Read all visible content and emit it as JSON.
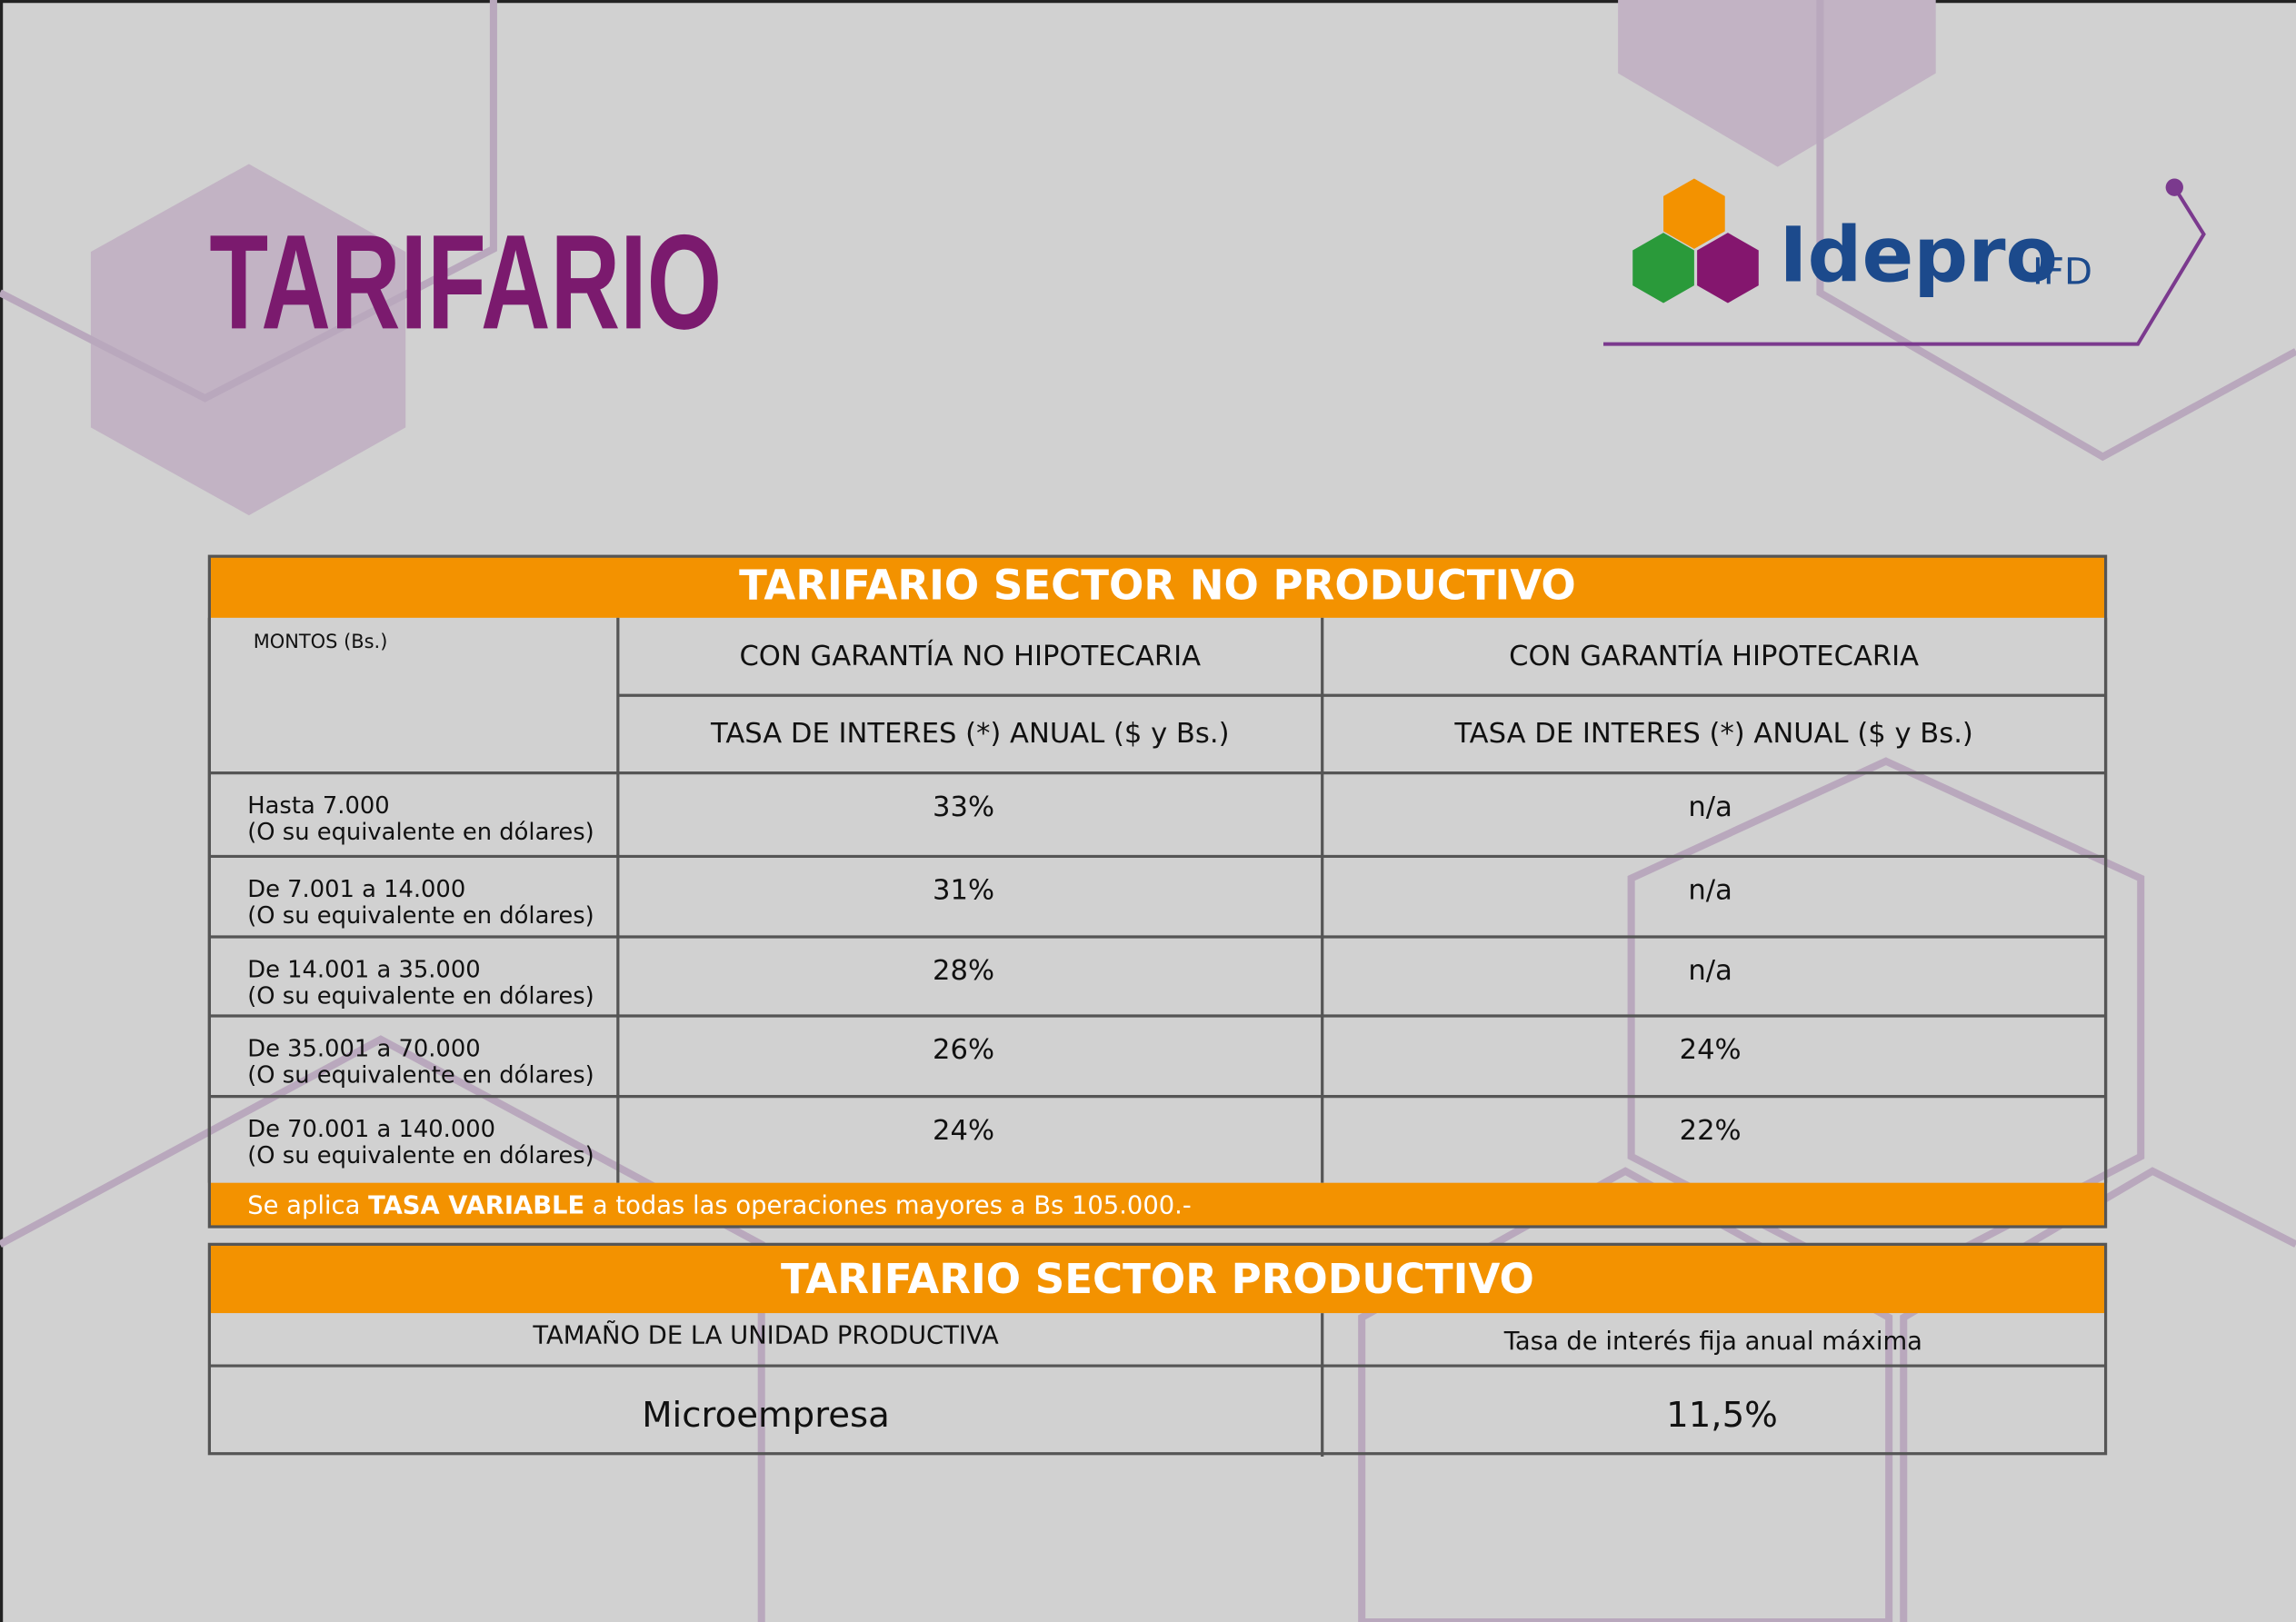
{
  "header": {
    "title": "TARIFARIO",
    "logo": {
      "name": "Idepro",
      "suffix": "IFD"
    }
  },
  "table_no_productivo": {
    "title": "TARIFARIO SECTOR NO PRODUCTIVO",
    "corner": "MONTOS (Bs.)",
    "columns": [
      "CON GARANTÍA NO HIPOTECARIA",
      "CON GARANTÍA HIPOTECARIA"
    ],
    "subheaders": [
      "TASA DE INTERES (*) ANUAL ($ y Bs.)",
      "TASA DE INTERES (*) ANUAL ($ y Bs.)"
    ],
    "rows": [
      {
        "amount": "Hasta 7.000",
        "note": "(O su equivalente en dólares)",
        "values": [
          "33%",
          "n/a"
        ]
      },
      {
        "amount": "De 7.001 a 14.000",
        "note": "(O su equivalente en dólares)",
        "values": [
          "31%",
          "n/a"
        ]
      },
      {
        "amount": "De 14.001 a 35.000",
        "note": "(O su equivalente en dólares)",
        "values": [
          "28%",
          "n/a"
        ]
      },
      {
        "amount": "De 35.001 a 70.000",
        "note": "(O su equivalente en dólares)",
        "values": [
          "26%",
          "24%"
        ]
      },
      {
        "amount": "De 70.001 a 140.000",
        "note": "(O su equivalente en dólares)",
        "values": [
          "24%",
          "22%"
        ]
      }
    ],
    "footnote": {
      "prefix": "Se aplica ",
      "bold": "TASA VARIABLE",
      "suffix": " a todas las operaciones mayores a Bs 105.000.-"
    }
  },
  "table_productivo": {
    "title": "TARIFARIO SECTOR PRODUCTIVO",
    "columns": [
      "TAMAÑO DE LA UNIDAD PRODUCTIVA",
      "Tasa de interés fija anual máxima"
    ],
    "rows": [
      [
        "Microempresa",
        "11,5%"
      ]
    ]
  }
}
